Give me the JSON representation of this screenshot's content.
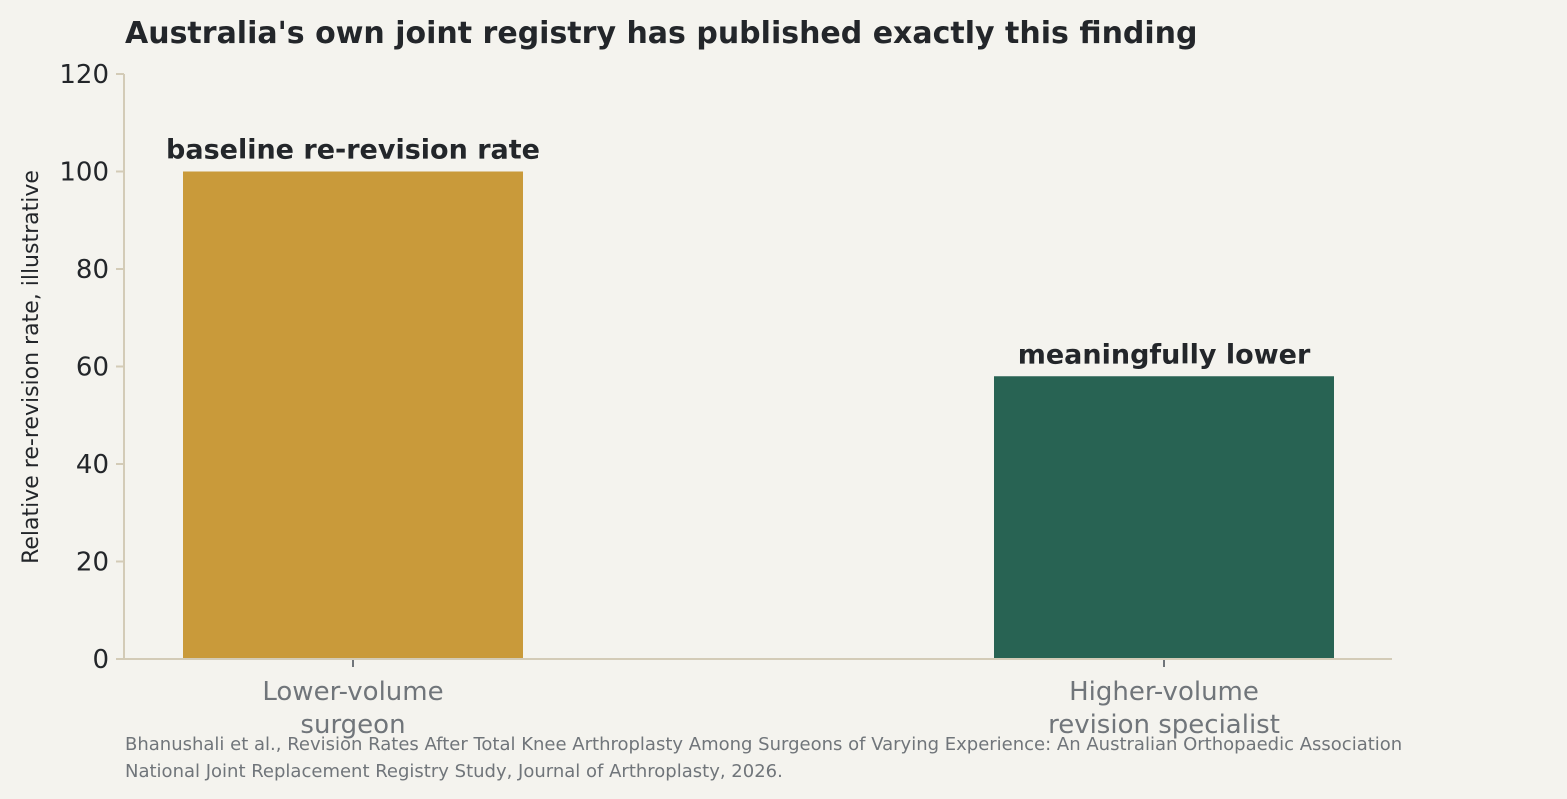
{
  "chart_data": {
    "type": "bar",
    "title": "Australia's own joint registry has published exactly this finding",
    "ylabel": "Relative re-revision rate, illustrative",
    "xlabel": "",
    "ylim": [
      0,
      120
    ],
    "yticks": [
      0,
      20,
      40,
      60,
      80,
      100,
      120
    ],
    "categories": [
      [
        "Lower-volume",
        "surgeon"
      ],
      [
        "Higher-volume",
        "revision specialist"
      ]
    ],
    "values": [
      100,
      58
    ],
    "bar_labels": [
      "baseline re-revision rate",
      "meaningfully lower"
    ],
    "bar_colors": [
      "#c99a3a",
      "#286353"
    ],
    "grid": false,
    "legend": "none"
  },
  "source": [
    "Bhanushali et al., Revision Rates After Total Knee Arthroplasty Among Surgeons of Varying Experience: An Australian Orthopaedic Association",
    "National Joint Replacement Registry Study, Journal of Arthroplasty, 2026."
  ],
  "colors": {
    "background": "#f4f3ee",
    "axis": "#d3cbb7",
    "text_dark": "#23262a",
    "text_muted": "#70757a"
  }
}
